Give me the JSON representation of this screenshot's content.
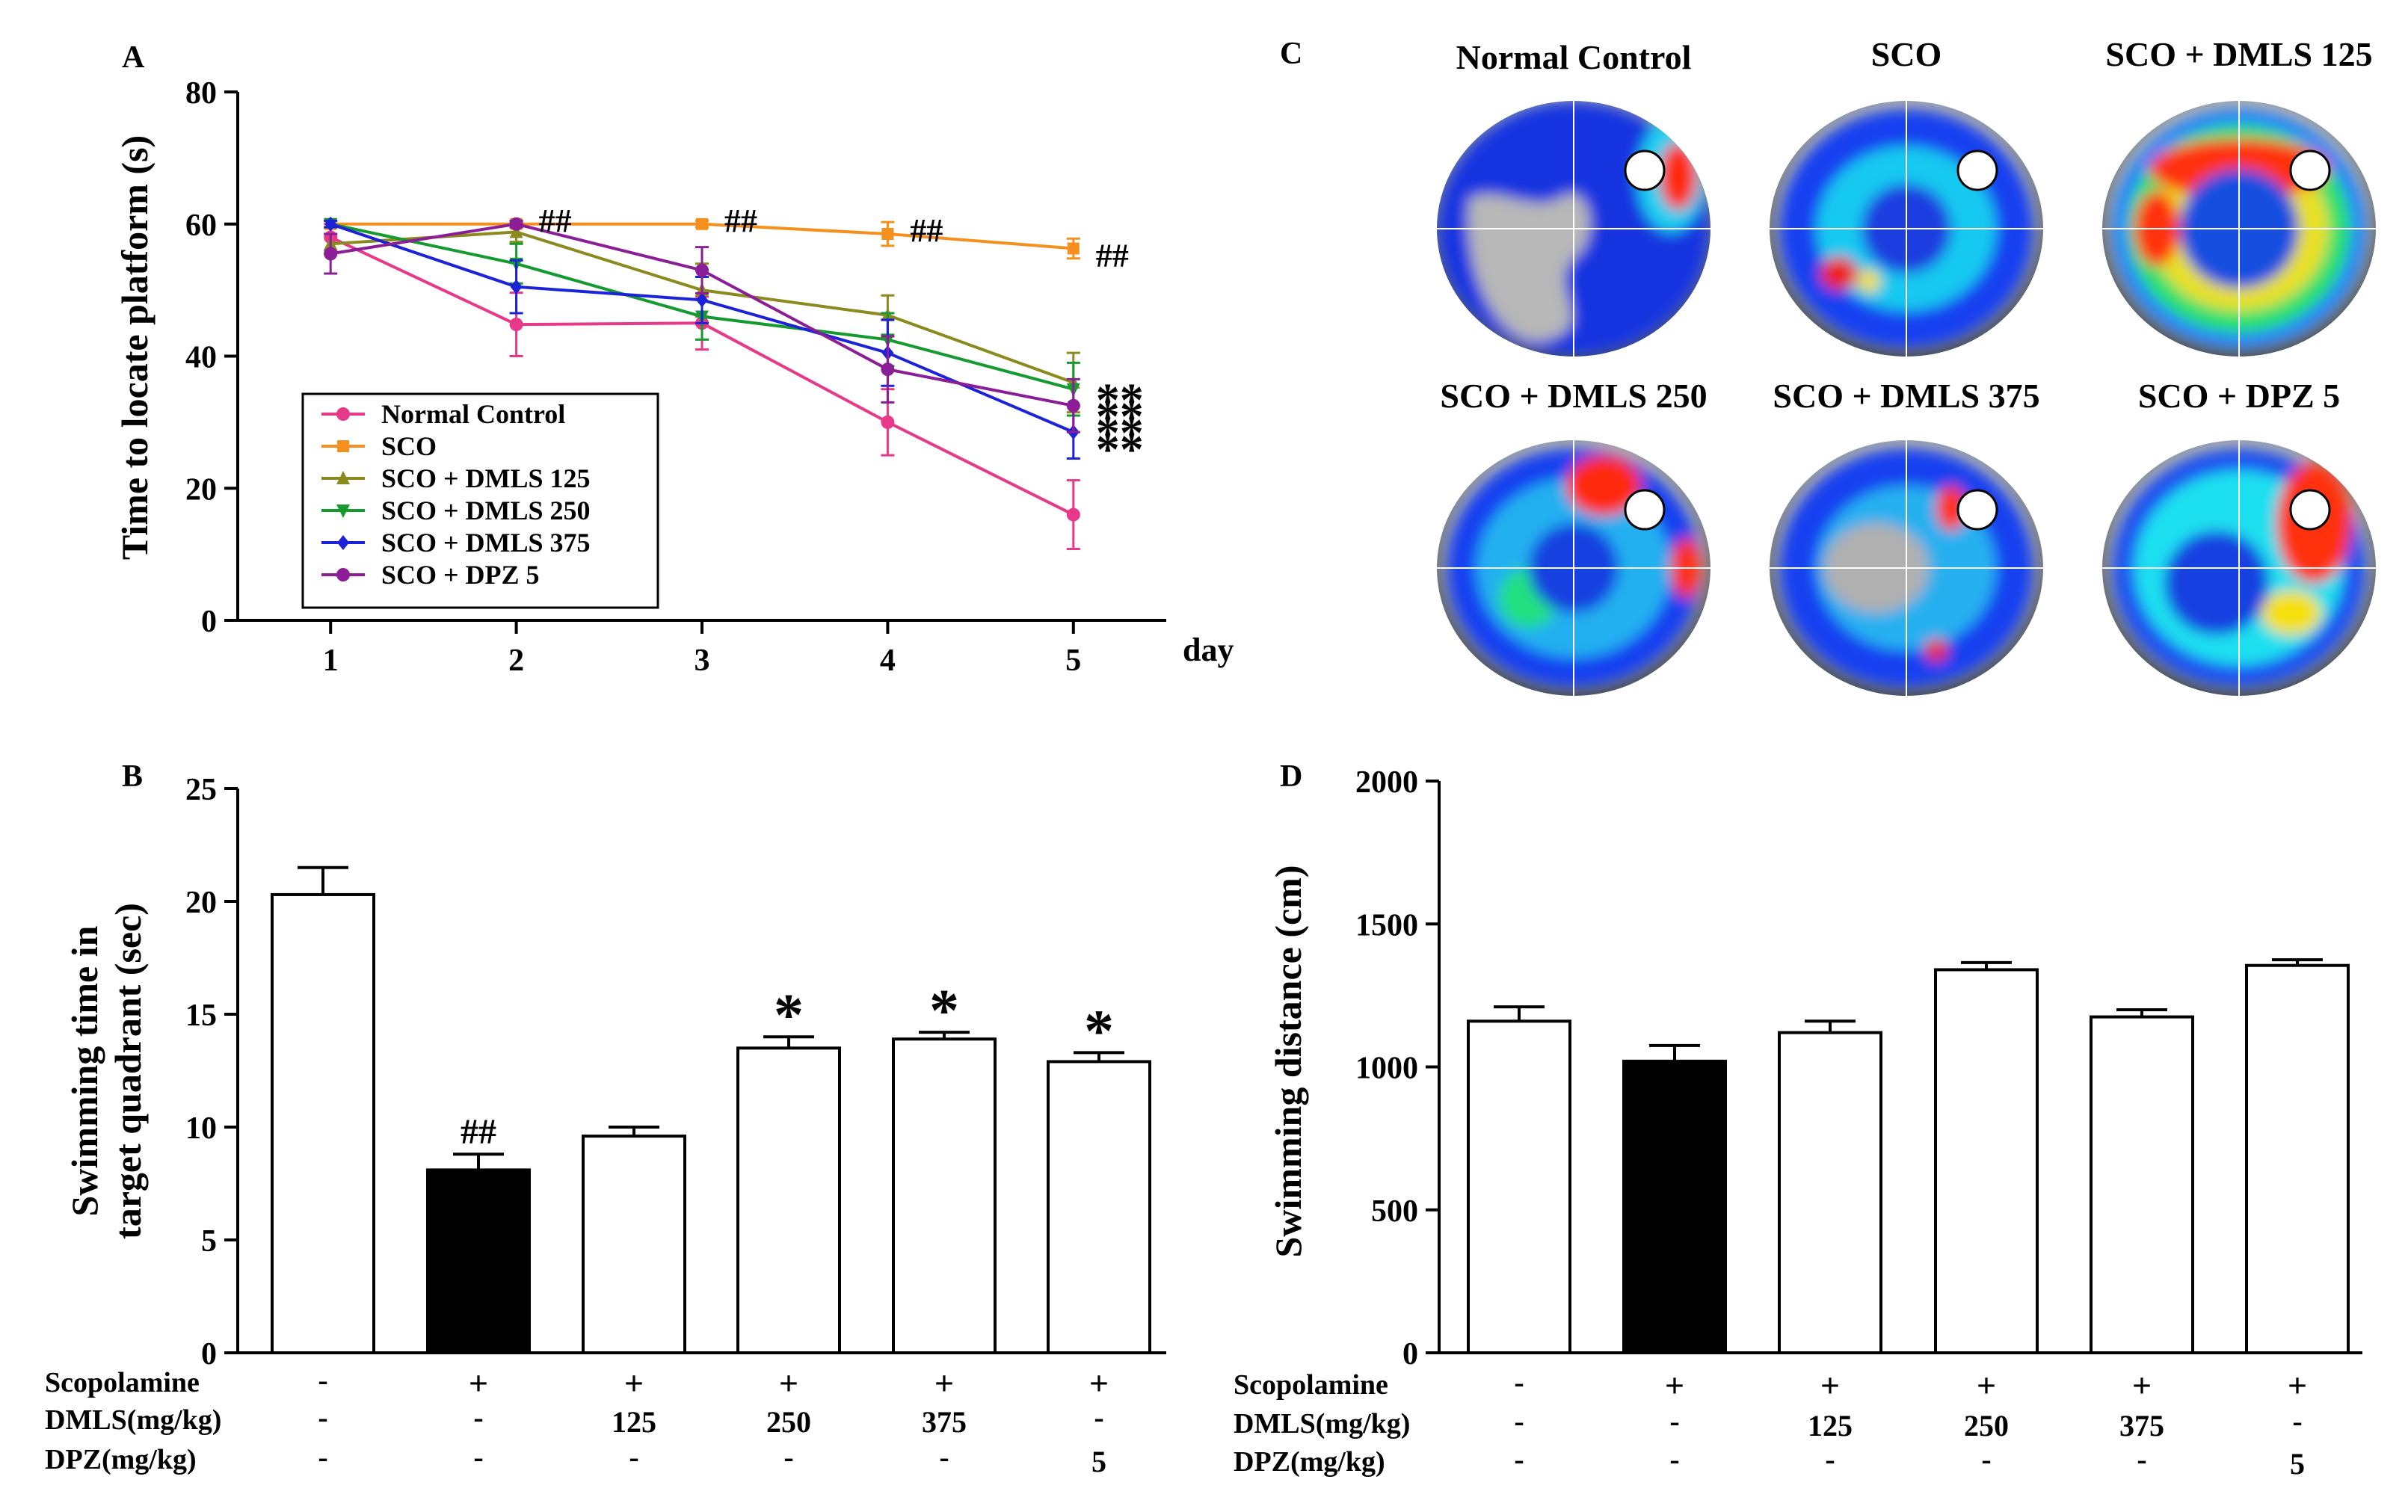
{
  "panels": {
    "A": {
      "letter": "A"
    },
    "B": {
      "letter": "B"
    },
    "C": {
      "letter": "C"
    },
    "D": {
      "letter": "D"
    }
  },
  "colors": {
    "normal": "#e8388a",
    "sco": "#f5901e",
    "dmls125": "#8a8a1e",
    "dmls250": "#159a30",
    "dmls375": "#1b22d8",
    "dpz5": "#8b1e96"
  },
  "treatment_rows": {
    "labels": [
      "Scopolamine",
      "DMLS(mg/kg)",
      "DPZ(mg/kg)"
    ],
    "scopolamine": [
      "-",
      "+",
      "+",
      "+",
      "+",
      "+"
    ],
    "dmls": [
      "-",
      "-",
      "125",
      "250",
      "375",
      "-"
    ],
    "dpz": [
      "-",
      "-",
      "-",
      "-",
      "-",
      "5"
    ]
  },
  "heatmaps": {
    "titles": [
      "Normal Control",
      "SCO",
      "SCO + DMLS 125",
      "SCO + DMLS 250",
      "SCO + DMLS 375",
      "SCO + DPZ 5"
    ]
  },
  "chart_data": [
    {
      "panel": "A",
      "type": "line",
      "xlabel": "day",
      "ylabel": "Time to locate platform (s)",
      "x": [
        1,
        2,
        3,
        4,
        5
      ],
      "xlim": [
        0.5,
        5.5
      ],
      "ylim": [
        0,
        80
      ],
      "yticks": [
        0,
        20,
        40,
        60,
        80
      ],
      "series": [
        {
          "name": "Normal Control",
          "color_key": "normal",
          "marker": "circle",
          "values": [
            58,
            44.8,
            45,
            30,
            16
          ],
          "errors": [
            2,
            4.8,
            4,
            5,
            5.2
          ]
        },
        {
          "name": "SCO",
          "color_key": "sco",
          "marker": "square",
          "values": [
            60,
            60,
            60,
            58.5,
            56.3
          ],
          "errors": [
            0.5,
            0.5,
            0.5,
            1.8,
            1.5
          ]
        },
        {
          "name": "SCO + DMLS 125",
          "color_key": "dmls125",
          "marker": "triangle",
          "values": [
            57,
            58.8,
            50,
            46.2,
            36
          ],
          "errors": [
            1.5,
            1.5,
            4,
            3,
            4.5
          ]
        },
        {
          "name": "SCO + DMLS 250",
          "color_key": "dmls250",
          "marker": "tri-down",
          "values": [
            60,
            54,
            46,
            42.5,
            35
          ],
          "errors": [
            0.5,
            3,
            3.5,
            4,
            4
          ]
        },
        {
          "name": "SCO + DMLS 375",
          "color_key": "dmls375",
          "marker": "diamond",
          "values": [
            60,
            50.5,
            48.5,
            40.5,
            28.5
          ],
          "errors": [
            0.5,
            4,
            3.5,
            5,
            4
          ]
        },
        {
          "name": "SCO + DPZ  5",
          "color_key": "dpz5",
          "marker": "circle",
          "values": [
            55.5,
            60,
            53,
            38,
            32.5
          ],
          "errors": [
            3,
            0.5,
            3.5,
            5,
            4
          ]
        }
      ],
      "annotations": [
        {
          "text": "##",
          "x": 2,
          "y": 60
        },
        {
          "text": "##",
          "x": 3,
          "y": 60
        },
        {
          "text": "##",
          "x": 4,
          "y": 58.5
        },
        {
          "text": "##",
          "x": 5,
          "y": 56.3
        },
        {
          "text": "**",
          "x": 5,
          "y": 35.5
        },
        {
          "text": "**",
          "x": 5,
          "y": 33
        },
        {
          "text": "**",
          "x": 5,
          "y": 30.5
        },
        {
          "text": "**",
          "x": 5,
          "y": 28
        }
      ],
      "legend_position": "lower-left"
    },
    {
      "panel": "B",
      "type": "bar",
      "ylabel": [
        "Swimming time in",
        "target quadrant (sec)"
      ],
      "ylim": [
        0,
        25
      ],
      "yticks": [
        0,
        5,
        10,
        15,
        20,
        25
      ],
      "values": [
        20.3,
        8.1,
        9.6,
        13.5,
        13.9,
        12.9
      ],
      "errors": [
        1.2,
        0.7,
        0.4,
        0.5,
        0.3,
        0.4
      ],
      "fills": [
        "white",
        "black",
        "white",
        "white",
        "white",
        "white"
      ],
      "annotations": [
        "",
        "##",
        "",
        "*",
        "*",
        "*"
      ]
    },
    {
      "panel": "D",
      "type": "bar",
      "ylabel": [
        "Swimming distance (cm)"
      ],
      "ylim": [
        0,
        2000
      ],
      "yticks": [
        0,
        500,
        1000,
        1500,
        2000
      ],
      "values": [
        1160,
        1020,
        1120,
        1340,
        1175,
        1355
      ],
      "errors": [
        50,
        55,
        40,
        25,
        25,
        20
      ],
      "fills": [
        "white",
        "black",
        "white",
        "white",
        "white",
        "white"
      ],
      "annotations": [
        "",
        "",
        "",
        "",
        "",
        ""
      ]
    }
  ]
}
